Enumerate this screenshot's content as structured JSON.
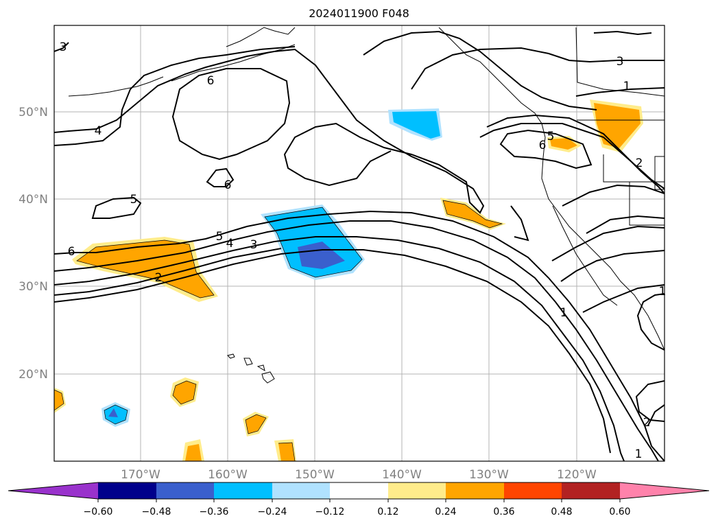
{
  "title": "2024011900 F048",
  "map": {
    "lat_labels": [
      "50°N",
      "40°N",
      "30°N",
      "20°N"
    ],
    "lon_labels": [
      "170°W",
      "160°W",
      "150°W",
      "140°W",
      "130°W",
      "120°W"
    ],
    "contour_labels": {
      "c6a": "6",
      "c4a": "4",
      "c6b": "6",
      "c5a": "5",
      "c6c": "6",
      "c5b": "5",
      "c4b": "4",
      "c3a": "3",
      "c2a": "2",
      "c3b": "3",
      "c1a": "1",
      "c6d": "6",
      "c5c": "5",
      "c1b": "1",
      "c2b": "2",
      "c1c": "1",
      "c3c": "3",
      "c2c": "2",
      "c1d": "1"
    }
  },
  "colorbar": {
    "tick_labels": [
      "−0.60",
      "−0.48",
      "−0.36",
      "−0.24",
      "−0.12",
      "0.12",
      "0.24",
      "0.36",
      "0.48",
      "0.60"
    ],
    "colors": [
      "#9932cc",
      "#00008b",
      "#3a5fcd",
      "#00bfff",
      "#b0e2ff",
      "#ffffff",
      "#ffec8b",
      "#ffa500",
      "#ff4500",
      "#b22222",
      "#ff82ab"
    ]
  }
}
